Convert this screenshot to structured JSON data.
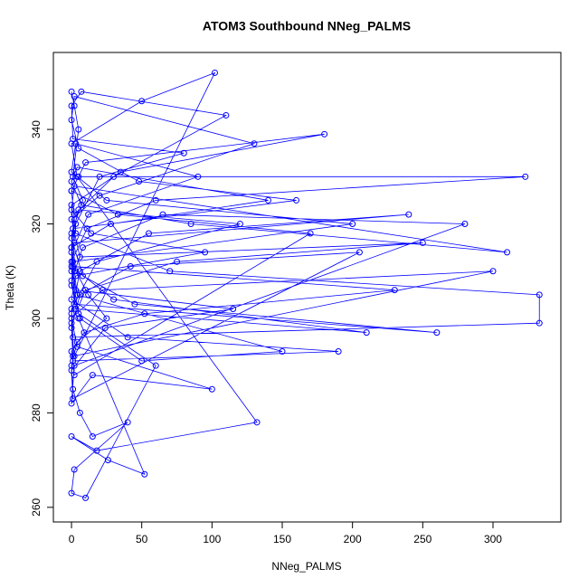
{
  "chart_data": {
    "type": "line",
    "title": "ATOM3 Southbound NNeg_PALMS",
    "x_label": "NNeg_PALMS",
    "y_label": "Theta (K)",
    "color": "#0000ff",
    "markers": true,
    "xlim": [
      -12.9,
      348.3
    ],
    "ylim": [
      256.9,
      356.3
    ],
    "xticks": [
      0,
      50,
      100,
      150,
      200,
      250,
      300
    ],
    "yticks": [
      260,
      280,
      300,
      320,
      340
    ],
    "x": [
      0,
      2,
      5,
      1,
      8,
      0,
      3,
      12,
      25,
      4,
      0,
      1,
      6,
      15,
      40,
      2,
      0,
      10,
      60,
      5,
      0,
      3,
      20,
      80,
      1,
      0,
      7,
      110,
      30,
      2,
      0,
      4,
      150,
      50,
      6,
      0,
      1,
      200,
      25,
      0,
      3,
      90,
      12,
      0,
      2,
      260,
      45,
      8,
      0,
      5,
      120,
      18,
      0,
      1,
      333,
      333,
      70,
      3,
      0,
      10,
      180,
      35,
      0,
      2,
      240,
      55,
      6,
      0,
      1,
      300,
      22,
      0,
      4,
      100,
      15,
      0,
      2,
      280,
      65,
      8,
      0,
      3,
      210,
      30,
      0,
      1,
      160,
      48,
      5,
      0,
      2,
      130,
      20,
      0,
      6,
      250,
      75,
      10,
      0,
      1,
      190,
      40,
      0,
      3,
      95,
      14,
      0,
      2,
      310,
      85,
      7,
      0,
      4,
      140,
      28,
      0,
      1,
      230,
      52,
      9,
      0,
      2,
      170,
      33,
      0,
      5,
      323,
      60,
      11,
      0,
      3,
      115,
      24,
      0,
      1,
      205,
      42,
      6,
      0,
      2,
      102,
      50,
      0,
      4,
      132,
      18,
      0,
      26,
      52,
      5
    ],
    "values": [
      348,
      345,
      340,
      330,
      325,
      318,
      310,
      305,
      300,
      295,
      290,
      285,
      280,
      275,
      278,
      268,
      263,
      262,
      290,
      301,
      310,
      320,
      330,
      335,
      338,
      345,
      348,
      343,
      330,
      322,
      315,
      305,
      293,
      291,
      300,
      307,
      312,
      320,
      325,
      331,
      337,
      330,
      322,
      314,
      303,
      297,
      303,
      309,
      317,
      323,
      320,
      312,
      302,
      296,
      299,
      305,
      310,
      318,
      327,
      333,
      339,
      331,
      324,
      316,
      322,
      318,
      310,
      301,
      292,
      310,
      306,
      300,
      294,
      285,
      288,
      282,
      290,
      320,
      322,
      315,
      308,
      302,
      297,
      304,
      311,
      319,
      325,
      329,
      336,
      342,
      347,
      337,
      326,
      321,
      313,
      316,
      312,
      306,
      299,
      291,
      293,
      296,
      304,
      309,
      314,
      318,
      323,
      328,
      314,
      320,
      324,
      329,
      332,
      325,
      320,
      315,
      311,
      306,
      301,
      297,
      293,
      288,
      318,
      322,
      327,
      330,
      330,
      325,
      319,
      312,
      306,
      302,
      298,
      289,
      283,
      314,
      311,
      305,
      298,
      292,
      352,
      346,
      337,
      330,
      278,
      272,
      275,
      270,
      267,
      300
    ]
  }
}
